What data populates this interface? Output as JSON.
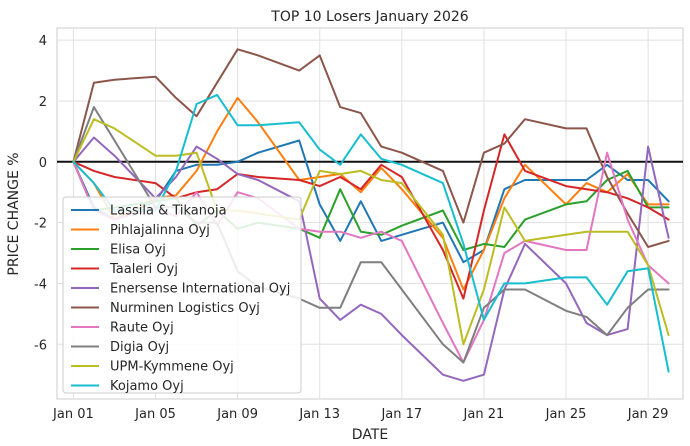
{
  "chart_data": {
    "type": "line",
    "title": "TOP 10 Losers January 2026",
    "xlabel": "DATE",
    "ylabel": "PRICE CHANGE %",
    "x_days": [
      1,
      2,
      3,
      5,
      6,
      7,
      8,
      9,
      10,
      12,
      13,
      14,
      15,
      16,
      17,
      19,
      20,
      21,
      22,
      23,
      25,
      26,
      27,
      28,
      29,
      30
    ],
    "xtick_days": [
      1,
      5,
      9,
      13,
      17,
      21,
      25,
      29
    ],
    "xtick_labels": [
      "Jan 01",
      "Jan 05",
      "Jan 09",
      "Jan 13",
      "Jan 17",
      "Jan 21",
      "Jan 25",
      "Jan 29"
    ],
    "xlim": [
      0.2,
      30.7
    ],
    "ylim": [
      -7.8,
      4.4
    ],
    "yticks": [
      -6,
      -4,
      -2,
      0,
      2,
      4
    ],
    "ytick_labels": [
      "-6",
      "-4",
      "-2",
      "0",
      "2",
      "4"
    ],
    "grid": true,
    "zero_line": true,
    "legend_position": "lower-left",
    "series": [
      {
        "name": "Lassila & Tikanoja",
        "color": "#1f77b4",
        "values": [
          0,
          -1.5,
          -1.9,
          -1.3,
          -0.3,
          -0.1,
          -0.1,
          0,
          0.3,
          0.7,
          -1.4,
          -2.6,
          -1.3,
          -2.6,
          -2.4,
          -2.0,
          -3.3,
          -2.9,
          -0.9,
          -0.6,
          -0.6,
          -0.6,
          -0.1,
          -0.6,
          -0.6,
          -1.3
        ]
      },
      {
        "name": "Pihlajalinna Oyj",
        "color": "#ff7f0e",
        "values": [
          0,
          -0.7,
          -1.9,
          -1.2,
          -1.1,
          -0.3,
          1.0,
          2.1,
          1.3,
          -0.6,
          -0.5,
          -0.4,
          -1.0,
          -0.2,
          -0.9,
          -2.5,
          -4.2,
          -2.9,
          -1.2,
          -0.1,
          -1.4,
          -0.7,
          -1.0,
          -0.4,
          -1.4,
          -1.4
        ]
      },
      {
        "name": "Elisa Oyj",
        "color": "#2ca02c",
        "values": [
          0,
          -1.6,
          -1.5,
          -1.3,
          -1.2,
          -2.1,
          -1.6,
          -2.2,
          -2.0,
          -2.2,
          -2.5,
          -0.9,
          -2.3,
          -2.4,
          -2.1,
          -1.6,
          -2.9,
          -2.7,
          -2.8,
          -1.9,
          -1.4,
          -1.3,
          -0.6,
          -0.3,
          -1.5,
          -1.5
        ]
      },
      {
        "name": "Taaleri Oyj",
        "color": "#d62728",
        "values": [
          0,
          -0.3,
          -0.5,
          -0.7,
          -1.2,
          -1.0,
          -0.9,
          -0.4,
          -0.5,
          -0.6,
          -0.8,
          -0.5,
          -0.9,
          -0.1,
          -0.5,
          -2.9,
          -4.5,
          -1.6,
          0.9,
          -0.3,
          -0.8,
          -0.9,
          -1.0,
          -1.2,
          -1.5,
          -1.9
        ]
      },
      {
        "name": "Enersense International Oyj",
        "color": "#9467bd",
        "values": [
          0,
          0.8,
          0.2,
          -1.2,
          -0.5,
          0.5,
          0.1,
          -0.4,
          -0.6,
          -1.3,
          -4.5,
          -5.2,
          -4.7,
          -5.0,
          -5.7,
          -7.0,
          -7.2,
          -7.0,
          -4.2,
          -2.7,
          -4.0,
          -5.3,
          -5.7,
          -5.5,
          0.5,
          -2.5
        ]
      },
      {
        "name": "Nurminen Logistics Oyj",
        "color": "#8c564b",
        "values": [
          0,
          2.6,
          2.7,
          2.8,
          2.1,
          1.5,
          2.6,
          3.7,
          3.5,
          3.0,
          3.5,
          1.8,
          1.6,
          0.5,
          0.3,
          -0.3,
          -2.0,
          0.3,
          0.6,
          1.4,
          1.1,
          1.1,
          -0.5,
          -1.7,
          -2.8,
          -2.6
        ]
      },
      {
        "name": "Raute Oyj",
        "color": "#e377c2",
        "values": [
          0,
          -1.6,
          -1.9,
          -1.5,
          -1.8,
          -1.0,
          -2.1,
          -1.0,
          -1.2,
          -2.2,
          -2.3,
          -2.3,
          -2.5,
          -2.3,
          -2.6,
          -5.3,
          -6.6,
          -5.2,
          -3.0,
          -2.6,
          -2.9,
          -2.9,
          0.3,
          -1.9,
          -3.4,
          -4.0
        ]
      },
      {
        "name": "Digia Oyj",
        "color": "#7f7f7f",
        "values": [
          0,
          1.8,
          0.7,
          -1.5,
          -1.5,
          -2.0,
          -2.0,
          -3.6,
          -4.1,
          -4.5,
          -4.8,
          -4.8,
          -3.3,
          -3.3,
          -4.2,
          -6.0,
          -6.6,
          -4.8,
          -4.2,
          -4.2,
          -4.9,
          -5.1,
          -5.7,
          -4.8,
          -4.2,
          -4.2
        ]
      },
      {
        "name": "UPM-Kymmene Oyj",
        "color": "#bcbd22",
        "values": [
          0,
          1.4,
          1.1,
          0.2,
          0.2,
          0.3,
          -1.6,
          -1.6,
          -1.7,
          -1.9,
          -0.3,
          -0.4,
          -0.3,
          -0.6,
          -0.7,
          -2.4,
          -6.0,
          -4.2,
          -1.5,
          -2.6,
          -2.4,
          -2.3,
          -2.3,
          -2.3,
          -3.4,
          -5.7
        ]
      },
      {
        "name": "Kojamo Oyj",
        "color": "#17becf",
        "values": [
          0,
          -0.7,
          -1.6,
          -1.6,
          -0.3,
          1.9,
          2.2,
          1.2,
          1.2,
          1.3,
          0.4,
          -0.1,
          0.9,
          0.1,
          -0.1,
          -0.7,
          -2.7,
          -5.2,
          -4.0,
          -4.0,
          -3.8,
          -3.8,
          -4.7,
          -3.6,
          -3.5,
          -6.9
        ]
      }
    ]
  }
}
